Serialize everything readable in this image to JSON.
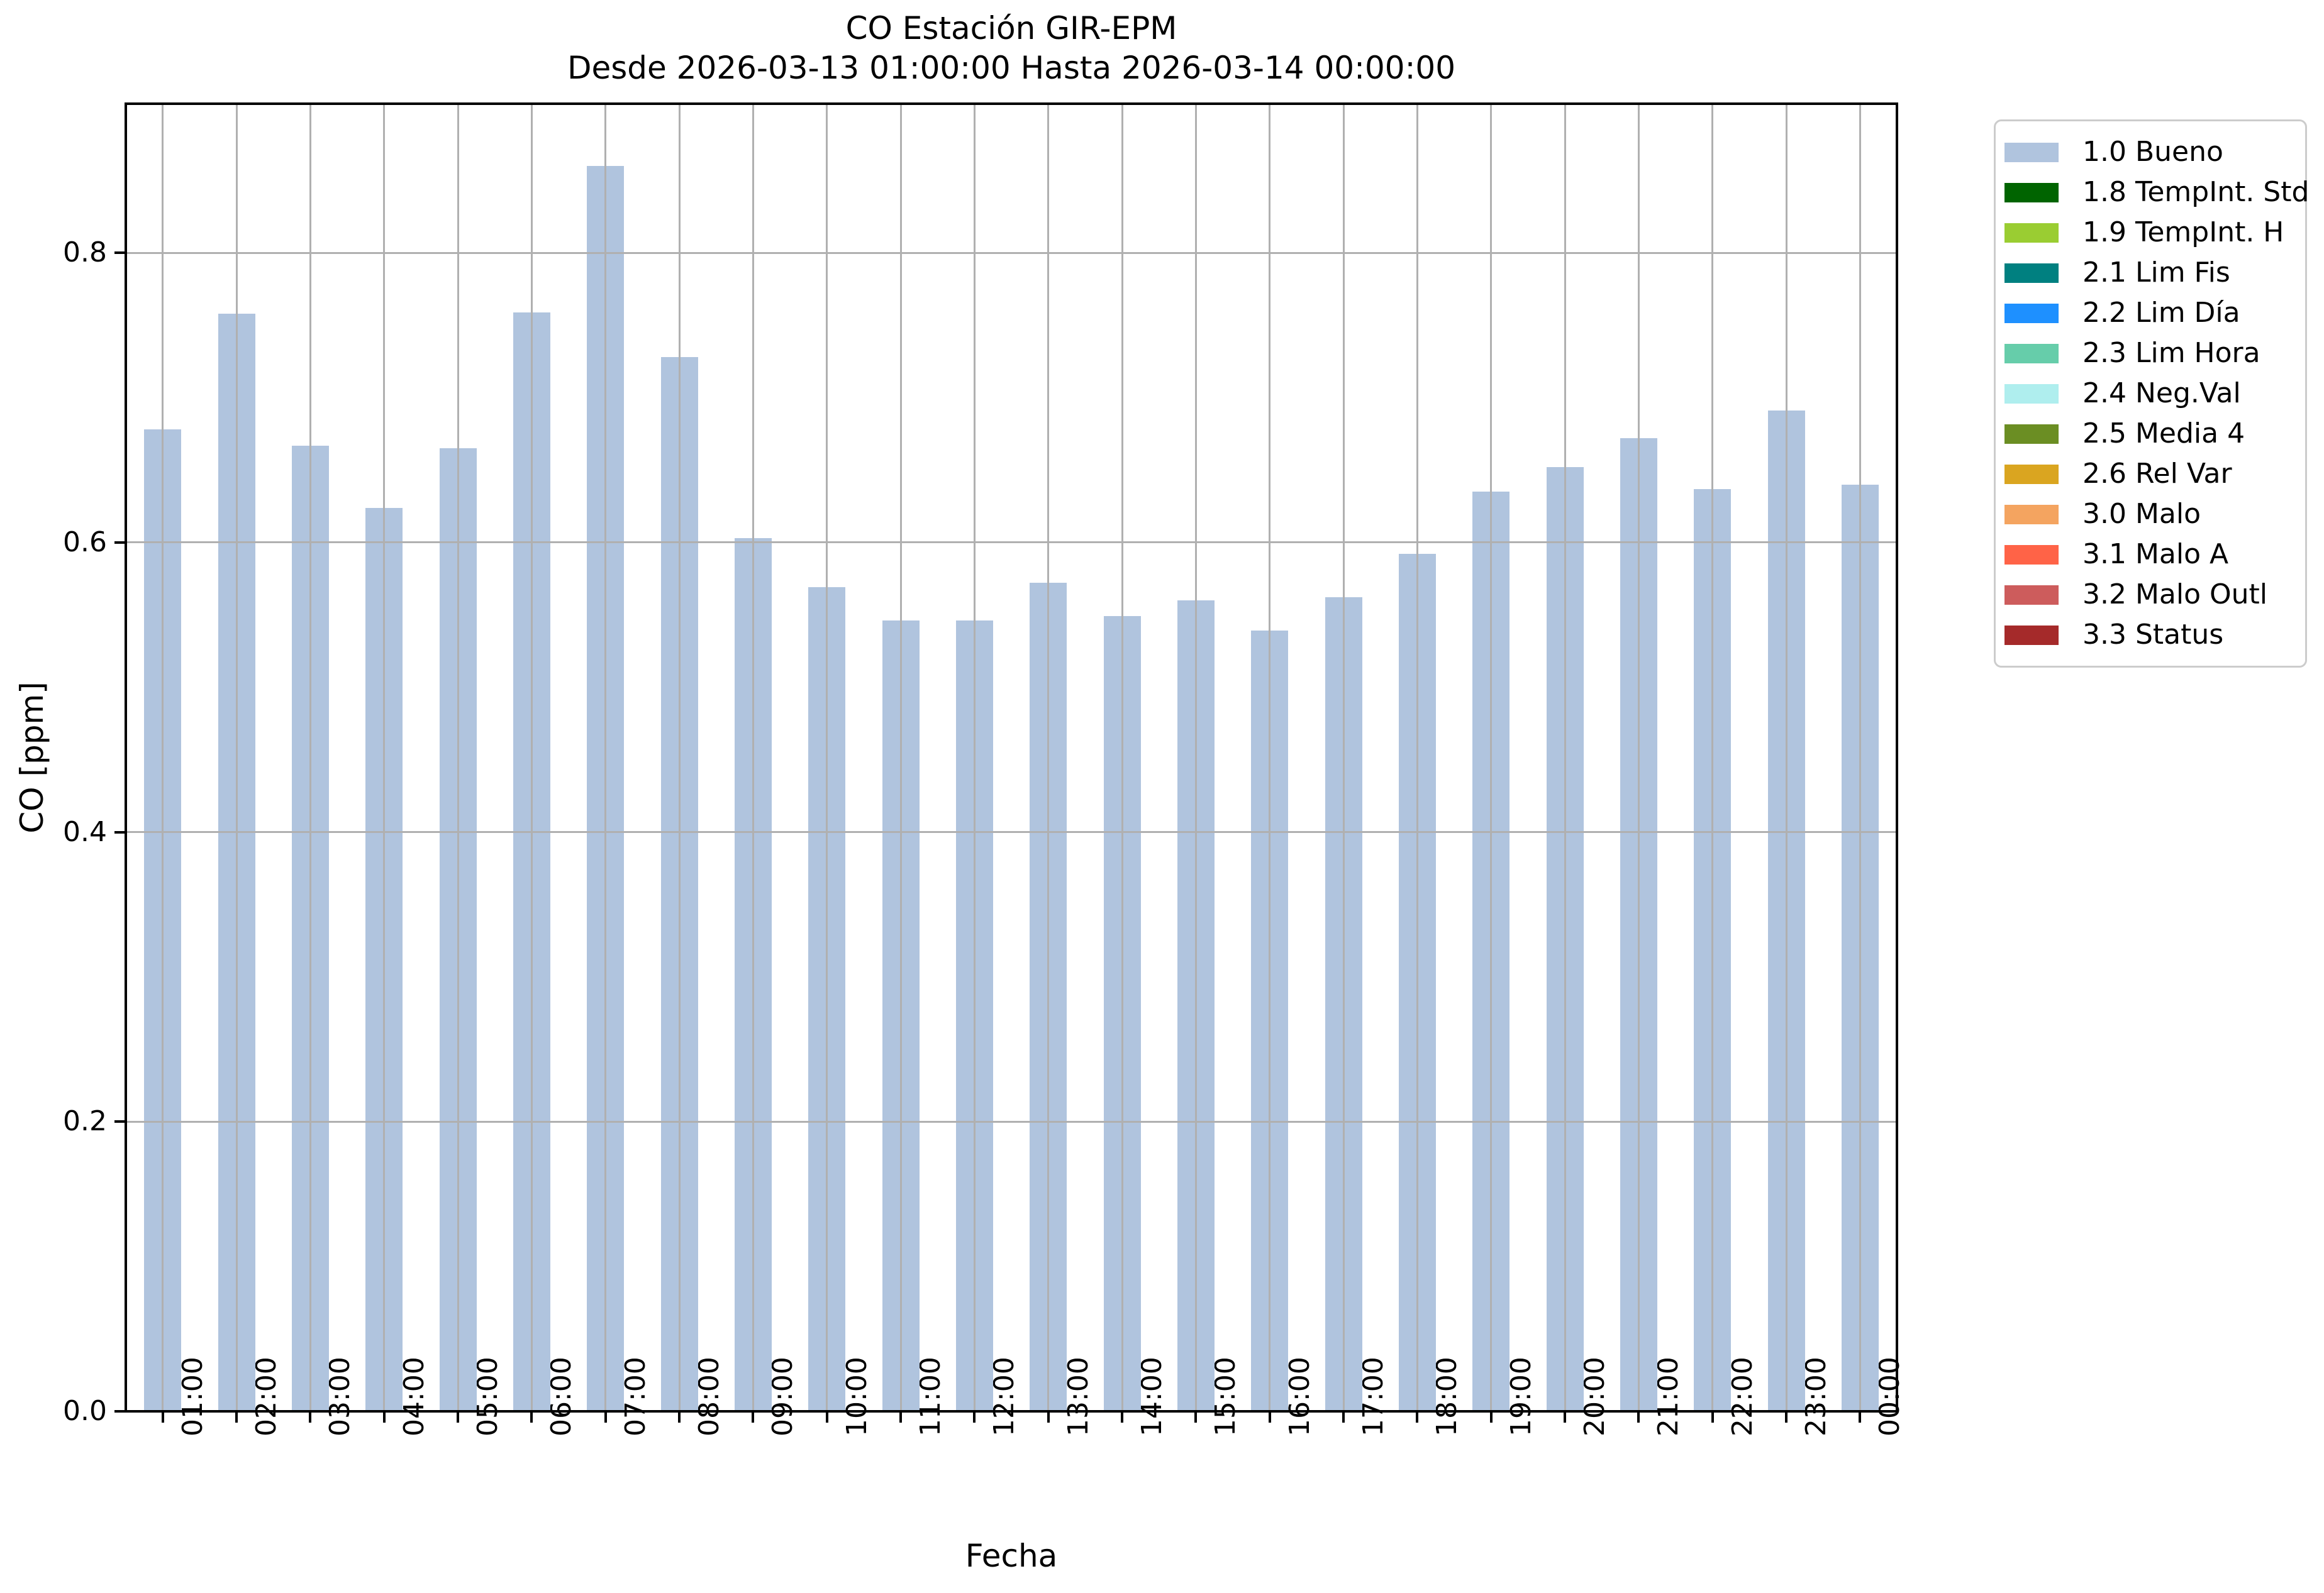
{
  "chart_data": {
    "type": "bar",
    "title": "CO Estación GIR-EPM",
    "subtitle": "Desde 2026-03-13 01:00:00 Hasta 2026-03-14 00:00:00",
    "xlabel": "Fecha",
    "ylabel": "CO [ppm]",
    "categories": [
      "01:00",
      "02:00",
      "03:00",
      "04:00",
      "05:00",
      "06:00",
      "07:00",
      "08:00",
      "09:00",
      "10:00",
      "11:00",
      "12:00",
      "13:00",
      "14:00",
      "15:00",
      "16:00",
      "17:00",
      "18:00",
      "19:00",
      "20:00",
      "21:00",
      "22:00",
      "23:00",
      "00:00"
    ],
    "values": [
      0.678,
      0.758,
      0.667,
      0.624,
      0.665,
      0.759,
      0.86,
      0.728,
      0.603,
      0.569,
      0.546,
      0.546,
      0.572,
      0.549,
      0.56,
      0.539,
      0.562,
      0.592,
      0.635,
      0.652,
      0.672,
      0.637,
      0.691,
      0.64
    ],
    "bar_color": "#b0c4de",
    "grid": true,
    "grid_color": "#b0b0b0",
    "ylim": [
      0,
      0.903
    ],
    "yticks": [
      "0.0",
      "0.2",
      "0.4",
      "0.6",
      "0.8"
    ],
    "ytick_values": [
      0.0,
      0.2,
      0.4,
      0.6,
      0.8
    ],
    "legend_position": "outside upper right",
    "legend": [
      {
        "label": "1.0 Bueno",
        "color": "#b0c4de"
      },
      {
        "label": "1.8 TempInt. Std",
        "color": "#006400"
      },
      {
        "label": "1.9 TempInt. H",
        "color": "#9acd32"
      },
      {
        "label": "2.1 Lim Fis",
        "color": "#008080"
      },
      {
        "label": "2.2 Lim Día",
        "color": "#1e90ff"
      },
      {
        "label": "2.3 Lim Hora",
        "color": "#66cdaa"
      },
      {
        "label": "2.4 Neg.Val",
        "color": "#afeeee"
      },
      {
        "label": "2.5 Media 4",
        "color": "#6b8e23"
      },
      {
        "label": "2.6 Rel Var",
        "color": "#daa520"
      },
      {
        "label": "3.0 Malo",
        "color": "#f4a460"
      },
      {
        "label": "3.1 Malo A",
        "color": "#ff6347"
      },
      {
        "label": "3.2 Malo Outl",
        "color": "#cd5c5c"
      },
      {
        "label": "3.3 Status",
        "color": "#a52a2a"
      }
    ]
  }
}
